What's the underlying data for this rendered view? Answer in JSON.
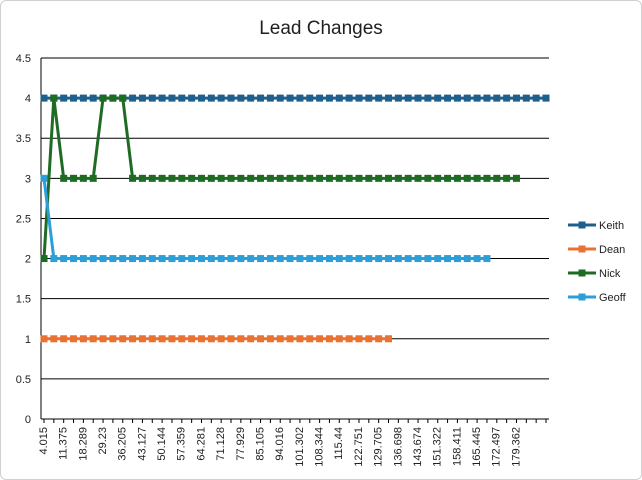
{
  "chart_data": {
    "type": "line",
    "title": "Lead Changes",
    "xlabel": "",
    "ylabel": "",
    "ylim": [
      0,
      4.5
    ],
    "ytick_step": 0.5,
    "y_ticks": [
      "0",
      "0.5",
      "1",
      "1.5",
      "2",
      "2.5",
      "3",
      "3.5",
      "4",
      "4.5"
    ],
    "grid": true,
    "legend_position": "right",
    "x_tick_labels": [
      "4.015",
      "11.375",
      "18.289",
      "29.23",
      "36.205",
      "43.127",
      "50.144",
      "57.359",
      "64.281",
      "71.128",
      "77.929",
      "85.105",
      "94.016",
      "101.302",
      "108.344",
      "115.44",
      "122.751",
      "129.705",
      "136.698",
      "143.674",
      "151.322",
      "158.411",
      "165.445",
      "172.497",
      "179.362"
    ],
    "num_points": 52,
    "series": [
      {
        "name": "Keith",
        "color": "#1f5f8b",
        "values": [
          4,
          4,
          4,
          4,
          4,
          4,
          4,
          4,
          4,
          4,
          4,
          4,
          4,
          4,
          4,
          4,
          4,
          4,
          4,
          4,
          4,
          4,
          4,
          4,
          4,
          4,
          4,
          4,
          4,
          4,
          4,
          4,
          4,
          4,
          4,
          4,
          4,
          4,
          4,
          4,
          4,
          4,
          4,
          4,
          4,
          4,
          4,
          4,
          4,
          4,
          4,
          4
        ]
      },
      {
        "name": "Dean",
        "color": "#e97132",
        "values": [
          1,
          1,
          1,
          1,
          1,
          1,
          1,
          1,
          1,
          1,
          1,
          1,
          1,
          1,
          1,
          1,
          1,
          1,
          1,
          1,
          1,
          1,
          1,
          1,
          1,
          1,
          1,
          1,
          1,
          1,
          1,
          1,
          1,
          1,
          1,
          1
        ]
      },
      {
        "name": "Nick",
        "color": "#1e6b24",
        "values": [
          2,
          4,
          3,
          3,
          3,
          3,
          4,
          4,
          4,
          3,
          3,
          3,
          3,
          3,
          3,
          3,
          3,
          3,
          3,
          3,
          3,
          3,
          3,
          3,
          3,
          3,
          3,
          3,
          3,
          3,
          3,
          3,
          3,
          3,
          3,
          3,
          3,
          3,
          3,
          3,
          3,
          3,
          3,
          3,
          3,
          3,
          3,
          3,
          3
        ]
      },
      {
        "name": "Geoff",
        "color": "#2c9fd8",
        "values": [
          3,
          2,
          2,
          2,
          2,
          2,
          2,
          2,
          2,
          2,
          2,
          2,
          2,
          2,
          2,
          2,
          2,
          2,
          2,
          2,
          2,
          2,
          2,
          2,
          2,
          2,
          2,
          2,
          2,
          2,
          2,
          2,
          2,
          2,
          2,
          2,
          2,
          2,
          2,
          2,
          2,
          2,
          2,
          2,
          2,
          2
        ]
      }
    ]
  }
}
